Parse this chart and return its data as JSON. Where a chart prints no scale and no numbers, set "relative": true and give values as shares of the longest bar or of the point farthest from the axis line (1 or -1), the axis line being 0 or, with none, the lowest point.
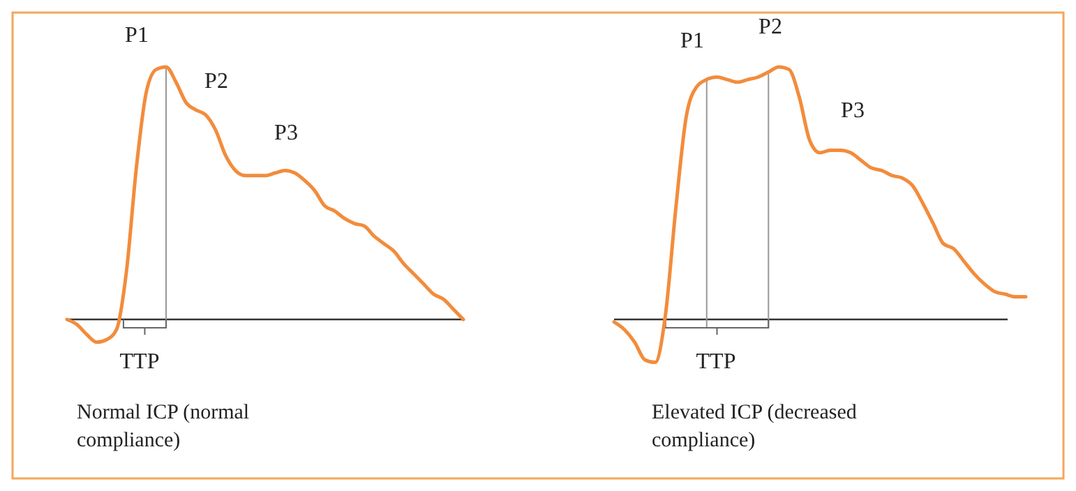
{
  "chart_data": [
    {
      "type": "line",
      "relative": true,
      "categories": [
        null,
        null,
        null,
        null,
        null,
        null,
        null,
        null,
        null,
        null,
        null,
        null,
        null,
        null,
        null,
        null,
        null,
        null,
        null,
        null,
        null,
        null,
        null,
        null,
        null,
        null,
        null,
        null,
        null,
        null,
        null,
        null,
        null,
        null,
        null,
        null,
        null,
        null,
        null,
        null,
        null
      ],
      "series": [
        {
          "color": "#f28c3c",
          "values": [
            0,
            -0.02,
            -0.06,
            -0.09,
            -0.08,
            -0.04,
            0.19,
            0.6,
            0.9,
            0.99,
            1,
            0.94,
            0.86,
            0.83,
            0.81,
            0.75,
            0.65,
            0.59,
            0.57,
            0.57,
            0.57,
            0.58,
            0.59,
            0.58,
            0.55,
            0.51,
            0.45,
            0.43,
            0.4,
            0.38,
            0.37,
            0.33,
            0.3,
            0.27,
            0.22,
            0.18,
            0.14,
            0.1,
            0.08,
            0.04,
            0
          ]
        }
      ],
      "annotations": [
        "P1",
        "P2",
        "P3",
        "TTP",
        "Normal ICP (normal compliance)"
      ],
      "marker": "none",
      "line_style": "solid"
    },
    {
      "type": "line",
      "relative": true,
      "categories": [
        null,
        null,
        null,
        null,
        null,
        null,
        null,
        null,
        null,
        null,
        null,
        null,
        null,
        null,
        null,
        null,
        null,
        null,
        null,
        null,
        null,
        null,
        null,
        null,
        null,
        null,
        null,
        null,
        null,
        null,
        null,
        null,
        null,
        null,
        null,
        null,
        null,
        null,
        null,
        null,
        null
      ],
      "series": [
        {
          "color": "#f28c3c",
          "values": [
            -0.01,
            -0.04,
            -0.09,
            -0.16,
            -0.17,
            0.02,
            0.44,
            0.8,
            0.92,
            0.95,
            0.96,
            0.95,
            0.94,
            0.95,
            0.96,
            0.98,
            1,
            0.99,
            0.88,
            0.71,
            0.66,
            0.67,
            0.67,
            0.66,
            0.63,
            0.6,
            0.59,
            0.57,
            0.56,
            0.53,
            0.46,
            0.38,
            0.3,
            0.28,
            0.23,
            0.18,
            0.14,
            0.11,
            0.1,
            0.09,
            0.09
          ]
        }
      ],
      "annotations": [
        "P1",
        "P2",
        "P3",
        "TTP",
        "Elevated ICP (decreased compliance)"
      ],
      "marker": "none",
      "line_style": "solid"
    }
  ]
}
